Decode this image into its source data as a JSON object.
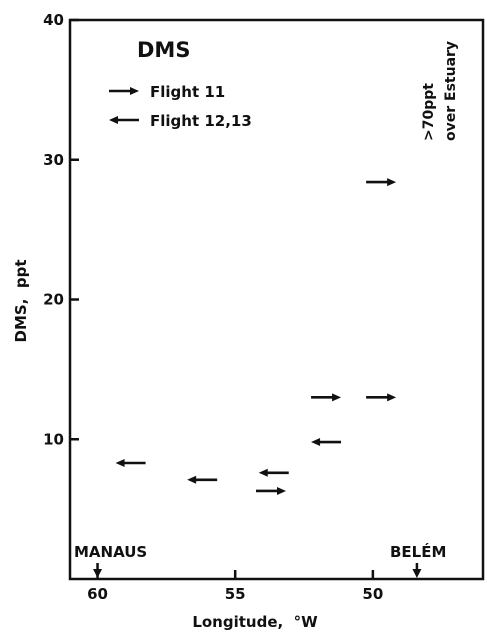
{
  "chart_data": {
    "type": "scatter",
    "title": "DMS",
    "xlabel": "Longitude,  °W",
    "ylabel": "DMS,  ppt",
    "x_reversed": true,
    "xlim": [
      61,
      46
    ],
    "ylim": [
      0,
      40
    ],
    "x_ticks": [
      60,
      55,
      50
    ],
    "y_ticks": [
      10,
      20,
      30,
      40
    ],
    "x_tick_labels": [
      "60",
      "55",
      "50"
    ],
    "y_tick_labels": [
      "10",
      "20",
      "30",
      "40"
    ],
    "grid": false,
    "legend_position": "top-left",
    "marker": "horizontal arrow (direction indicates flight heading)",
    "series": [
      {
        "name": "Flight 11",
        "direction": "east",
        "points": [
          {
            "x": 53.7,
            "y": 6.3
          },
          {
            "x": 51.7,
            "y": 13.0
          },
          {
            "x": 49.7,
            "y": 13.0
          },
          {
            "x": 49.7,
            "y": 28.4
          }
        ]
      },
      {
        "name": "Flight 12,13",
        "direction": "west",
        "points": [
          {
            "x": 58.8,
            "y": 8.3
          },
          {
            "x": 56.2,
            "y": 7.1
          },
          {
            "x": 53.6,
            "y": 7.6
          },
          {
            "x": 51.7,
            "y": 9.8
          }
        ]
      }
    ],
    "annotations": {
      "manaus": {
        "label": "MANAUS",
        "x": 60
      },
      "belem": {
        "label": "BELÉM",
        "x": 48.4
      },
      "estuary_line1": ">70ppt",
      "estuary_line2": "over Estuary"
    }
  },
  "colors": {
    "ink": "#111111",
    "background": "#ffffff"
  }
}
